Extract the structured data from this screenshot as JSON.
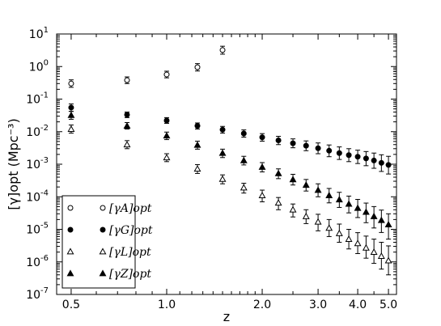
{
  "chart_data": {
    "type": "scatter",
    "title": "",
    "xlabel": "z",
    "ylabel": "[γ]opt  (Mpc⁻³)",
    "x_scale": "log",
    "y_scale": "log",
    "xlim": [
      0.45,
      5.3
    ],
    "ylim": [
      1e-07,
      10
    ],
    "x_ticks": [
      {
        "value": 0.5,
        "label": "0.5"
      },
      {
        "value": 1.0,
        "label": "1.0"
      },
      {
        "value": 2.0,
        "label": "2.0"
      },
      {
        "value": 3.0,
        "label": "3.0"
      },
      {
        "value": 4.0,
        "label": "4.0"
      },
      {
        "value": 5.0,
        "label": "5.0"
      }
    ],
    "y_ticks": [
      {
        "value": 1e-07,
        "base": "10",
        "exp": "-7"
      },
      {
        "value": 1e-06,
        "base": "10",
        "exp": "-6"
      },
      {
        "value": 1e-05,
        "base": "10",
        "exp": "-5"
      },
      {
        "value": 0.0001,
        "base": "10",
        "exp": "-4"
      },
      {
        "value": 0.001,
        "base": "10",
        "exp": "-3"
      },
      {
        "value": 0.01,
        "base": "10",
        "exp": "-2"
      },
      {
        "value": 0.1,
        "base": "10",
        "exp": "-1"
      },
      {
        "value": 1,
        "base": "10",
        "exp": "0"
      },
      {
        "value": 10,
        "base": "10",
        "exp": "1"
      }
    ],
    "legend_position": "lower-left",
    "series": [
      {
        "name": "[γA]opt",
        "sub": "A",
        "marker": "open-circle",
        "color": "#000000",
        "points": [
          {
            "x": 0.5,
            "y": 0.3,
            "err_lo": 0.07,
            "err_hi": 0.09
          },
          {
            "x": 0.75,
            "y": 0.38,
            "err_lo": 0.08,
            "err_hi": 0.1
          },
          {
            "x": 1.0,
            "y": 0.57,
            "err_lo": 0.12,
            "err_hi": 0.15
          },
          {
            "x": 1.25,
            "y": 0.95,
            "err_lo": 0.22,
            "err_hi": 0.28
          },
          {
            "x": 1.5,
            "y": 3.2,
            "err_lo": 0.8,
            "err_hi": 1.0
          }
        ]
      },
      {
        "name": "[γG]opt",
        "sub": "G",
        "marker": "filled-circle",
        "color": "#000000",
        "points": [
          {
            "x": 0.5,
            "y": 0.055,
            "err_lo": 0.013,
            "err_hi": 0.016
          },
          {
            "x": 0.75,
            "y": 0.033,
            "err_lo": 0.006,
            "err_hi": 0.007
          },
          {
            "x": 1.0,
            "y": 0.022,
            "err_lo": 0.004,
            "err_hi": 0.005
          },
          {
            "x": 1.25,
            "y": 0.015,
            "err_lo": 0.003,
            "err_hi": 0.0035
          },
          {
            "x": 1.5,
            "y": 0.0115,
            "err_lo": 0.0025,
            "err_hi": 0.003
          },
          {
            "x": 1.75,
            "y": 0.0088,
            "err_lo": 0.002,
            "err_hi": 0.0025
          },
          {
            "x": 2.0,
            "y": 0.0067,
            "err_lo": 0.0016,
            "err_hi": 0.002
          },
          {
            "x": 2.25,
            "y": 0.0054,
            "err_lo": 0.0014,
            "err_hi": 0.0018
          },
          {
            "x": 2.5,
            "y": 0.0044,
            "err_lo": 0.0012,
            "err_hi": 0.0016
          },
          {
            "x": 2.75,
            "y": 0.0037,
            "err_lo": 0.0011,
            "err_hi": 0.0015
          },
          {
            "x": 3.0,
            "y": 0.0031,
            "err_lo": 0.001,
            "err_hi": 0.0014
          },
          {
            "x": 3.25,
            "y": 0.0026,
            "err_lo": 0.0009,
            "err_hi": 0.0013
          },
          {
            "x": 3.5,
            "y": 0.0022,
            "err_lo": 0.0008,
            "err_hi": 0.0012
          },
          {
            "x": 3.75,
            "y": 0.0019,
            "err_lo": 0.0007,
            "err_hi": 0.0011
          },
          {
            "x": 4.0,
            "y": 0.0017,
            "err_lo": 0.00065,
            "err_hi": 0.001
          },
          {
            "x": 4.25,
            "y": 0.0015,
            "err_lo": 0.0006,
            "err_hi": 0.00095
          },
          {
            "x": 4.5,
            "y": 0.0013,
            "err_lo": 0.00055,
            "err_hi": 0.0009
          },
          {
            "x": 4.75,
            "y": 0.0011,
            "err_lo": 0.0005,
            "err_hi": 0.00085
          },
          {
            "x": 5.0,
            "y": 0.00095,
            "err_lo": 0.00045,
            "err_hi": 0.0008
          }
        ]
      },
      {
        "name": "[γL]opt",
        "sub": "L",
        "marker": "open-triangle",
        "color": "#000000",
        "points": [
          {
            "x": 0.5,
            "y": 0.012,
            "err_lo": 0.003,
            "err_hi": 0.004
          },
          {
            "x": 0.75,
            "y": 0.004,
            "err_lo": 0.001,
            "err_hi": 0.0013
          },
          {
            "x": 1.0,
            "y": 0.0016,
            "err_lo": 0.0004,
            "err_hi": 0.0005
          },
          {
            "x": 1.25,
            "y": 0.00072,
            "err_lo": 0.0002,
            "err_hi": 0.00025
          },
          {
            "x": 1.5,
            "y": 0.00035,
            "err_lo": 0.0001,
            "err_hi": 0.00012
          },
          {
            "x": 1.75,
            "y": 0.00019,
            "err_lo": 6e-05,
            "err_hi": 7e-05
          },
          {
            "x": 2.0,
            "y": 0.00011,
            "err_lo": 4e-05,
            "err_hi": 5e-05
          },
          {
            "x": 2.25,
            "y": 6.5e-05,
            "err_lo": 2.5e-05,
            "err_hi": 3e-05
          },
          {
            "x": 2.5,
            "y": 4e-05,
            "err_lo": 1.6e-05,
            "err_hi": 2e-05
          },
          {
            "x": 2.75,
            "y": 2.5e-05,
            "err_lo": 1e-05,
            "err_hi": 1.5e-05
          },
          {
            "x": 3.0,
            "y": 1.7e-05,
            "err_lo": 8e-06,
            "err_hi": 1.2e-05
          },
          {
            "x": 3.25,
            "y": 1.1e-05,
            "err_lo": 5e-06,
            "err_hi": 9e-06
          },
          {
            "x": 3.5,
            "y": 7.5e-06,
            "err_lo": 3.5e-06,
            "err_hi": 7e-06
          },
          {
            "x": 3.75,
            "y": 5e-06,
            "err_lo": 2.5e-06,
            "err_hi": 5e-06
          },
          {
            "x": 4.0,
            "y": 3.7e-06,
            "err_lo": 1.9e-06,
            "err_hi": 4.2e-06
          },
          {
            "x": 4.25,
            "y": 2.7e-06,
            "err_lo": 1.4e-06,
            "err_hi": 3.5e-06
          },
          {
            "x": 4.5,
            "y": 2e-06,
            "err_lo": 1.1e-06,
            "err_hi": 3e-06
          },
          {
            "x": 4.75,
            "y": 1.5e-06,
            "err_lo": 9e-07,
            "err_hi": 2.5e-06
          },
          {
            "x": 5.0,
            "y": 1.1e-06,
            "err_lo": 7e-07,
            "err_hi": 2e-06
          }
        ]
      },
      {
        "name": "[γZ]opt",
        "sub": "Z",
        "marker": "filled-triangle",
        "color": "#000000",
        "points": [
          {
            "x": 0.5,
            "y": 0.032,
            "err_lo": 0.008,
            "err_hi": 0.01
          },
          {
            "x": 0.75,
            "y": 0.015,
            "err_lo": 0.003,
            "err_hi": 0.004
          },
          {
            "x": 1.0,
            "y": 0.0075,
            "err_lo": 0.0018,
            "err_hi": 0.0022
          },
          {
            "x": 1.25,
            "y": 0.0039,
            "err_lo": 0.001,
            "err_hi": 0.0012
          },
          {
            "x": 1.5,
            "y": 0.0022,
            "err_lo": 0.0006,
            "err_hi": 0.0007
          },
          {
            "x": 1.75,
            "y": 0.0013,
            "err_lo": 0.00035,
            "err_hi": 0.00045
          },
          {
            "x": 2.0,
            "y": 0.00082,
            "err_lo": 0.00024,
            "err_hi": 0.0003
          },
          {
            "x": 2.25,
            "y": 0.00052,
            "err_lo": 0.00016,
            "err_hi": 0.0002
          },
          {
            "x": 2.5,
            "y": 0.00034,
            "err_lo": 0.00011,
            "err_hi": 0.00015
          },
          {
            "x": 2.75,
            "y": 0.00023,
            "err_lo": 8e-05,
            "err_hi": 0.00011
          },
          {
            "x": 3.0,
            "y": 0.00016,
            "err_lo": 6e-05,
            "err_hi": 9e-05
          },
          {
            "x": 3.25,
            "y": 0.00011,
            "err_lo": 4.5e-05,
            "err_hi": 7e-05
          },
          {
            "x": 3.5,
            "y": 8.2e-05,
            "err_lo": 3.5e-05,
            "err_hi": 5.5e-05
          },
          {
            "x": 3.75,
            "y": 6e-05,
            "err_lo": 2.8e-05,
            "err_hi": 4.5e-05
          },
          {
            "x": 4.0,
            "y": 4.5e-05,
            "err_lo": 2.2e-05,
            "err_hi": 3.8e-05
          },
          {
            "x": 4.25,
            "y": 3.4e-05,
            "err_lo": 1.8e-05,
            "err_hi": 3e-05
          },
          {
            "x": 4.5,
            "y": 2.5e-05,
            "err_lo": 1.4e-05,
            "err_hi": 2.5e-05
          },
          {
            "x": 4.75,
            "y": 1.9e-05,
            "err_lo": 1.1e-05,
            "err_hi": 2e-05
          },
          {
            "x": 5.0,
            "y": 1.4e-05,
            "err_lo": 9e-06,
            "err_hi": 1.6e-05
          }
        ]
      }
    ]
  }
}
